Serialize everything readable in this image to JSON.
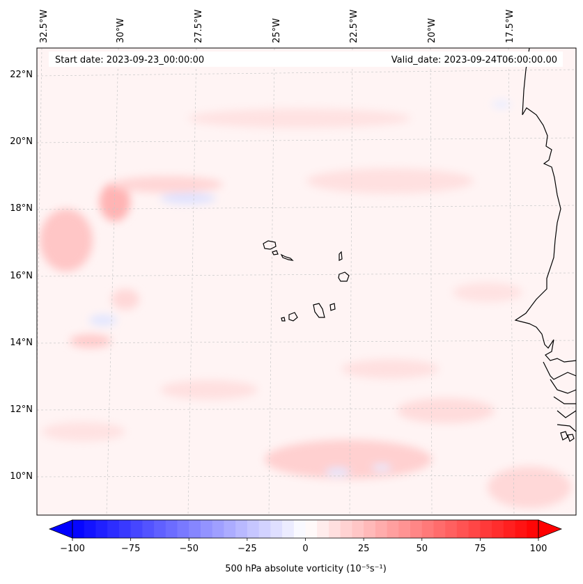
{
  "map": {
    "start_date": "Start date: 2023-09-23_00:00:00",
    "valid_date": "Valid_date: 2023-09-24T06:00:00.00",
    "lon_labels": [
      "32.5°W",
      "30°W",
      "27.5°W",
      "25°W",
      "22.5°W",
      "20°W",
      "17.5°W"
    ],
    "lat_labels": [
      "22°N",
      "20°N",
      "18°N",
      "16°N",
      "14°N",
      "12°N",
      "10°N"
    ],
    "coastline_color": "#000000",
    "gridline_color": "#bbbbbb"
  },
  "colorbar": {
    "label": "500 hPa absolute vorticity (10⁻⁵s⁻¹)",
    "ticks": [
      "−100",
      "−75",
      "−50",
      "−25",
      "0",
      "25",
      "50",
      "75",
      "100"
    ],
    "min": -100,
    "max": 100,
    "negative_color": "#0000ff",
    "positive_color": "#ff0000",
    "neutral_color": "#ffffff"
  }
}
